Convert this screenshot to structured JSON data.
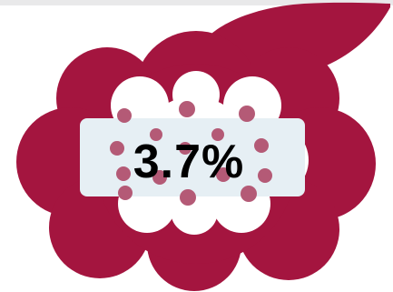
{
  "graphic": {
    "icon": "raspberry-icon",
    "value_text": "3.7%"
  },
  "colors": {
    "berry": "#a4153f",
    "drupelet": "#b45a76",
    "label_box": "#e6eff4",
    "text": "#000000",
    "background": "#ffffff"
  }
}
